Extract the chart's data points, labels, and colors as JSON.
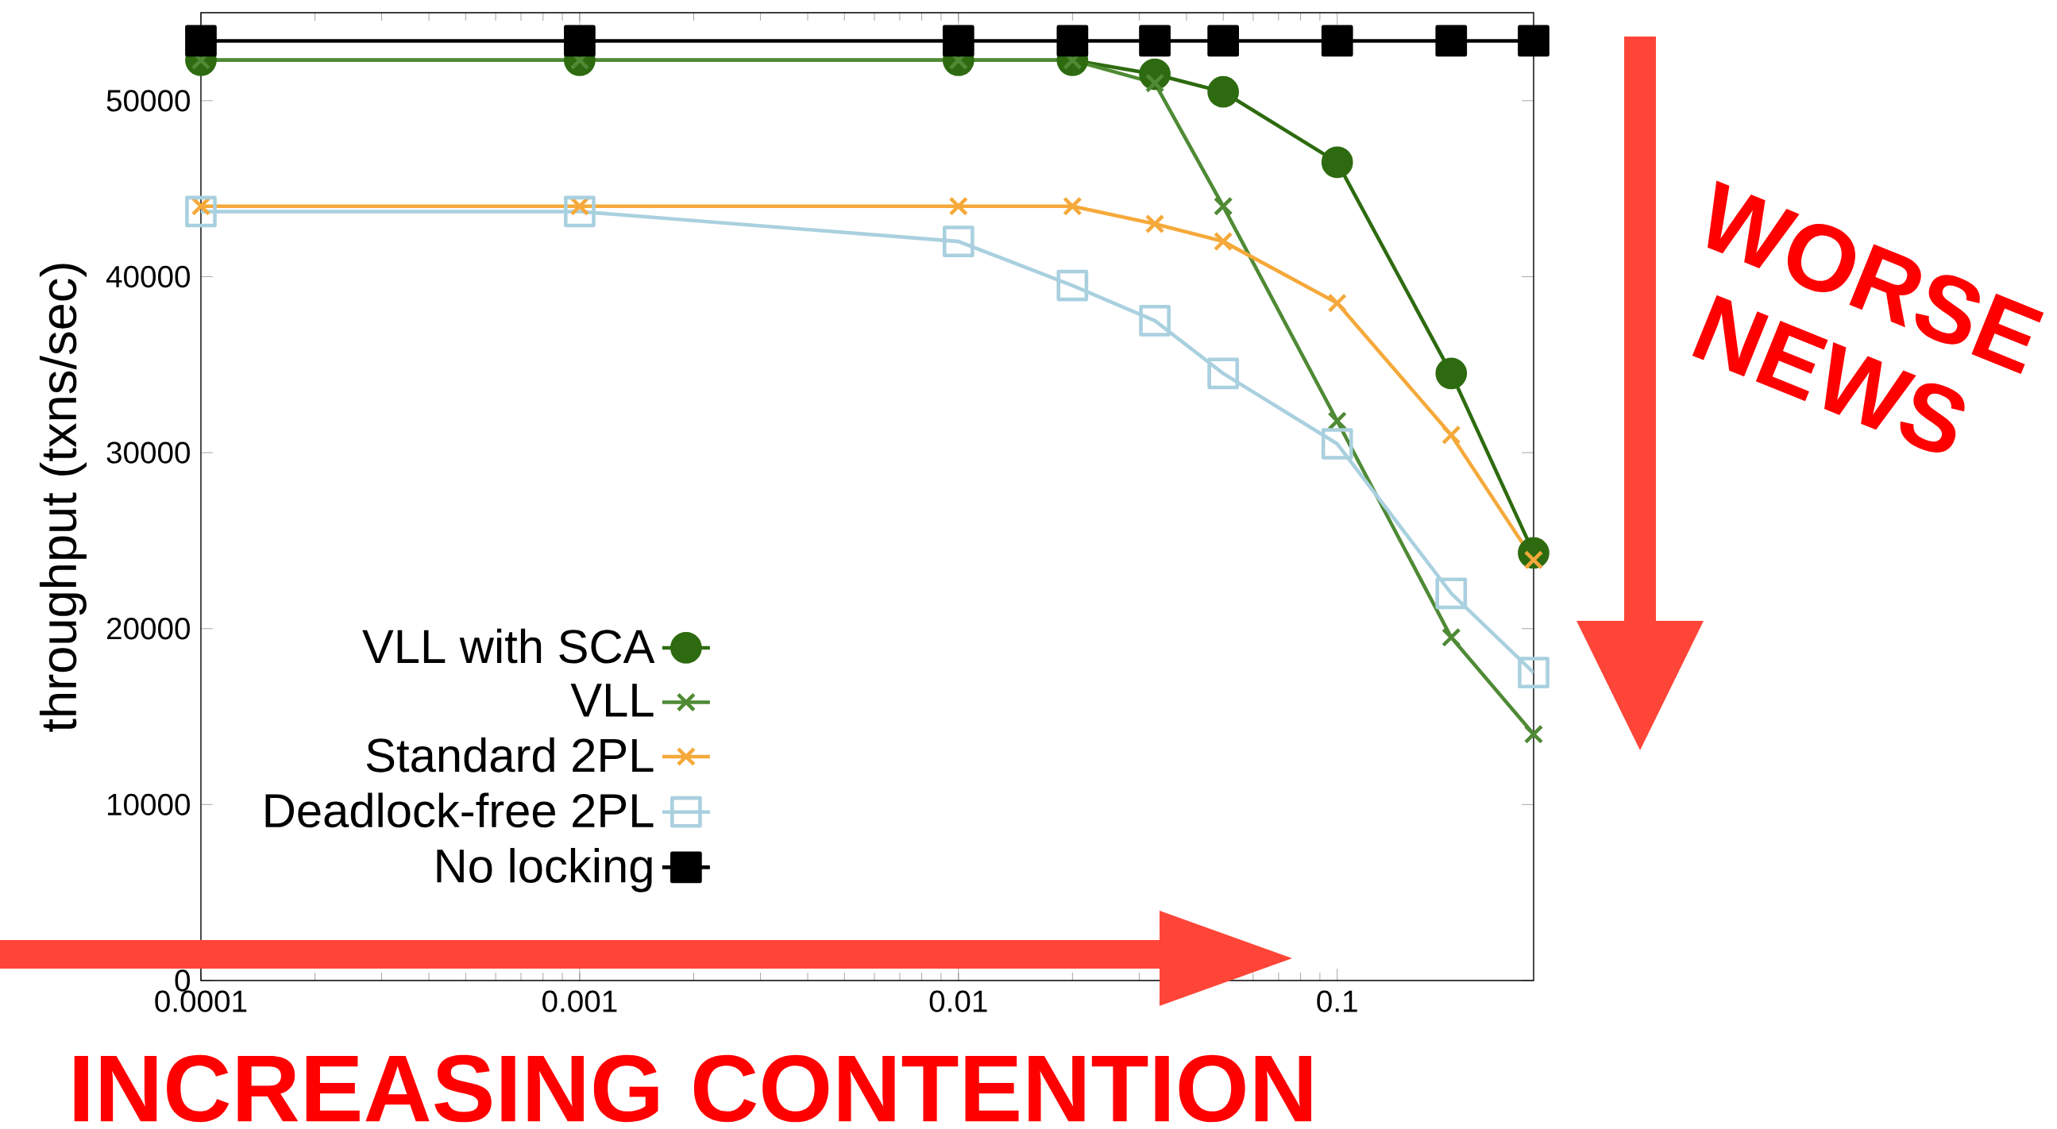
{
  "chart_data": {
    "type": "line",
    "ylabel": "throughput (txns/sec)",
    "x": [
      0.0001,
      0.001,
      0.01,
      0.02,
      0.033,
      0.05,
      0.1,
      0.2,
      0.33
    ],
    "series": [
      {
        "name": "VLL with SCA",
        "color": "#2e6b10",
        "marker": "circle",
        "values": [
          52300,
          52300,
          52300,
          52300,
          51500,
          50500,
          46500,
          34500,
          24300
        ]
      },
      {
        "name": "VLL",
        "color": "#4f8a35",
        "marker": "cross",
        "values": [
          52300,
          52300,
          52300,
          52300,
          51000,
          44000,
          31800,
          19500,
          14000
        ]
      },
      {
        "name": "Standard 2PL",
        "color": "#f5a93a",
        "marker": "cross",
        "values": [
          44000,
          44000,
          44000,
          44000,
          43000,
          42000,
          38500,
          31000,
          23900
        ]
      },
      {
        "name": "Deadlock-free 2PL",
        "color": "#a9d0df",
        "marker": "square",
        "values": [
          43700,
          43700,
          42000,
          39500,
          37500,
          34500,
          30500,
          22000,
          17500
        ]
      },
      {
        "name": "No locking",
        "color": "#000000",
        "marker": "square",
        "values": [
          53400,
          53400,
          53400,
          53400,
          53400,
          53400,
          53400,
          53400,
          53400
        ]
      }
    ],
    "log": "x",
    "xlim": [
      0.0001,
      0.33
    ],
    "xticks": [
      0.0001,
      0.001,
      0.01,
      0.1
    ],
    "ylim": [
      0,
      55000
    ],
    "yticks": [
      0,
      10000,
      20000,
      30000,
      40000,
      50000
    ],
    "grid": false,
    "legend": "bottom left",
    "annotations": [
      "WORSE NEWS",
      "INCREASING CONTENTION"
    ]
  }
}
